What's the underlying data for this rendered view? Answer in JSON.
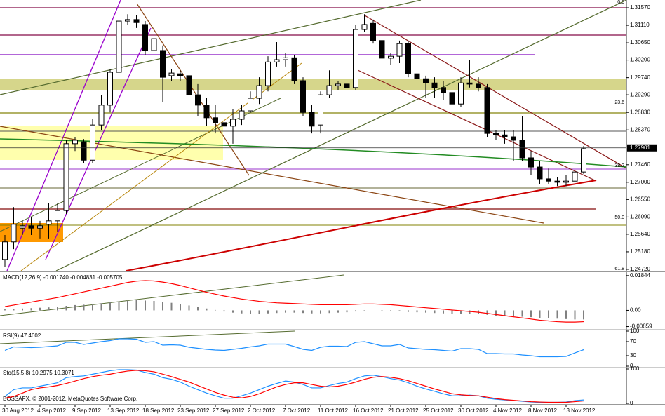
{
  "chart_data": [
    {
      "type": "candlestick",
      "categories": [
        "30 Aug 2012",
        null,
        null,
        null,
        "4 Sep 2012",
        null,
        null,
        null,
        "9 Sep 2012",
        null,
        null,
        null,
        "13 Sep 2012",
        null,
        null,
        null,
        "18 Sep 2012",
        null,
        null,
        null,
        "23 Sep 2012",
        null,
        null,
        null,
        "27 Sep 2012",
        null,
        null,
        null,
        "2 Oct 2012",
        null,
        null,
        null,
        "7 Oct 2012",
        null,
        null,
        null,
        "11 Oct 2012",
        null,
        null,
        null,
        "16 Oct 2012",
        null,
        null,
        null,
        "21 Oct 2012",
        null,
        null,
        null,
        "25 Oct 2012",
        null,
        null,
        null,
        "30 Oct 2012",
        null,
        null,
        null,
        "4 Nov 2012",
        null,
        null,
        null,
        "8 Nov 2012",
        null,
        null,
        null,
        "13 Nov 2012",
        null,
        null
      ],
      "open": [
        1.2498,
        1.2544,
        1.258,
        1.2586,
        1.258,
        1.259,
        1.2599,
        1.2626,
        1.2801,
        1.2806,
        1.2758,
        1.285,
        1.2902,
        1.2988,
        1.3122,
        1.3126,
        1.3113,
        1.3045,
        1.3045,
        1.2979,
        1.2984,
        1.2979,
        1.2929,
        1.2902,
        1.2869,
        1.2856,
        1.2847,
        1.2865,
        1.2887,
        1.292,
        1.2953,
        1.3015,
        1.3021,
        1.3026,
        1.2966,
        1.2883,
        1.285,
        1.2929,
        1.2953,
        1.2957,
        1.2948,
        1.31,
        1.3116,
        1.3071,
        1.3025,
        1.303,
        1.3063,
        1.2984,
        1.2971,
        1.296,
        1.2948,
        1.2935,
        1.2905,
        1.296,
        1.2957,
        1.2948,
        1.2828,
        1.2824,
        1.2819,
        1.281,
        1.2764,
        1.274,
        1.2709,
        1.2703,
        1.27,
        1.2703,
        1.2727
      ],
      "high": [
        1.2562,
        1.2635,
        1.2599,
        1.2608,
        1.2599,
        1.2645,
        1.2645,
        1.281,
        1.2819,
        1.2813,
        1.2865,
        1.2929,
        1.2997,
        1.3168,
        1.314,
        1.3137,
        1.3122,
        1.3104,
        1.3058,
        1.2997,
        1.2993,
        1.2984,
        1.2957,
        1.292,
        1.2902,
        1.2938,
        1.2892,
        1.2902,
        1.2938,
        1.2975,
        1.303,
        1.3067,
        1.3039,
        1.3034,
        1.2975,
        1.2902,
        1.2938,
        1.2993,
        1.2966,
        1.2984,
        1.3113,
        1.314,
        1.3126,
        1.3076,
        1.3039,
        1.3071,
        1.3071,
        1.2993,
        1.2979,
        1.2975,
        1.2966,
        1.2948,
        1.2975,
        1.3021,
        1.2975,
        1.2957,
        1.2837,
        1.2837,
        1.2837,
        1.2874,
        1.2782,
        1.2755,
        1.2736,
        1.2714,
        1.2718,
        1.2746,
        1.2795
      ],
      "low": [
        1.2479,
        1.2525,
        1.2562,
        1.2562,
        1.2553,
        1.2553,
        1.2571,
        1.2617,
        1.2782,
        1.2751,
        1.2751,
        1.2837,
        1.2883,
        1.2979,
        1.3113,
        1.3104,
        1.3034,
        1.303,
        1.2911,
        1.2966,
        1.2966,
        1.2902,
        1.2874,
        1.2847,
        1.2828,
        1.2801,
        1.2801,
        1.285,
        1.2883,
        1.2905,
        1.2938,
        1.3003,
        1.3003,
        1.2957,
        1.2874,
        1.2828,
        1.2828,
        1.292,
        1.2942,
        1.2892,
        1.2942,
        1.3094,
        1.3063,
        1.3015,
        1.3008,
        1.3012,
        1.2975,
        1.2929,
        1.292,
        1.292,
        1.2916,
        1.2887,
        1.2898,
        1.2948,
        1.2938,
        1.2819,
        1.281,
        1.2801,
        1.2755,
        1.2755,
        1.2718,
        1.2696,
        1.2696,
        1.269,
        1.269,
        1.2681,
        1.2722
      ],
      "close": [
        1.2544,
        1.259,
        1.2586,
        1.258,
        1.2586,
        1.2599,
        1.2626,
        1.2801,
        1.281,
        1.2758,
        1.285,
        1.2902,
        1.2988,
        1.3122,
        1.3126,
        1.3118,
        1.3045,
        1.3076,
        1.2975,
        1.2986,
        1.2979,
        1.2929,
        1.2902,
        1.2869,
        1.2856,
        1.2847,
        1.2865,
        1.2887,
        1.292,
        1.2953,
        1.3015,
        1.3021,
        1.3026,
        1.2966,
        1.2883,
        1.2847,
        1.2929,
        1.2953,
        1.2957,
        1.2948,
        1.31,
        1.3113,
        1.3071,
        1.3025,
        1.303,
        1.3063,
        1.2984,
        1.2971,
        1.296,
        1.2948,
        1.2935,
        1.2905,
        1.296,
        1.2957,
        1.2948,
        1.2828,
        1.2824,
        1.2819,
        1.281,
        1.2764,
        1.274,
        1.2709,
        1.2703,
        1.27,
        1.2703,
        1.2727,
        1.2788
      ],
      "up_color": "#ffffff",
      "down_color": "#000000",
      "ylim": [
        1.24683,
        1.31772
      ],
      "yticks": [
        {
          "value": 1.3157,
          "label": "1.31570"
        },
        {
          "value": 1.3111,
          "label": "1.31110"
        },
        {
          "value": 1.3065,
          "label": "1.30650"
        },
        {
          "value": 1.302,
          "label": "1.30200"
        },
        {
          "value": 1.2974,
          "label": "1.29740"
        },
        {
          "value": 1.2929,
          "label": "1.29290"
        },
        {
          "value": 1.2883,
          "label": "1.28830"
        },
        {
          "value": 1.2837,
          "label": "1.28370"
        },
        {
          "value": 1.2746,
          "label": "1.27460"
        },
        {
          "value": 1.27,
          "label": "1.27000"
        },
        {
          "value": 1.2655,
          "label": "1.26550"
        },
        {
          "value": 1.2609,
          "label": "1.26090"
        },
        {
          "value": 1.2564,
          "label": "1.25640"
        },
        {
          "value": 1.2518,
          "label": "1.25180"
        },
        {
          "value": 1.2472,
          "label": "1.24720"
        }
      ],
      "last_price": 1.27901,
      "annotations": [
        "0.0",
        "23.6",
        "38.2",
        "50.0",
        "61.8"
      ]
    },
    {
      "type": "macd",
      "title": "MACD(12,26,9) -0.001740 -0.004831 -0.005705",
      "series": [
        {
          "color": "#808080",
          "style": "bar",
          "values": [
            0.0005,
            0.0008,
            0.001,
            0.0012,
            0.0014,
            0.0016,
            0.0018,
            0.0024,
            0.0028,
            0.003,
            0.0034,
            0.0038,
            0.0042,
            0.0048,
            0.0052,
            0.0054,
            0.0052,
            0.005,
            0.0044,
            0.004,
            0.0034,
            0.0026,
            0.0018,
            0.001,
            0.0002,
            -0.0006,
            -0.0012,
            -0.0016,
            -0.0018,
            -0.0018,
            -0.0016,
            -0.0014,
            -0.0012,
            -0.0012,
            -0.0014,
            -0.0016,
            -0.0016,
            -0.0014,
            -0.0012,
            -0.001,
            -0.0006,
            -0.0002,
            0,
            -0.0002,
            -0.0004,
            -0.0004,
            -0.0008,
            -0.001,
            -0.0012,
            -0.0014,
            -0.0016,
            -0.0018,
            -0.0018,
            -0.0018,
            -0.002,
            -0.0024,
            -0.0028,
            -0.003,
            -0.0032,
            -0.0034,
            -0.0036,
            -0.004,
            -0.0042,
            -0.0044,
            -0.0046,
            -0.0048,
            -0.0048
          ]
        },
        {
          "color": "#ff0000",
          "style": "line",
          "values": [
            0.002,
            0.0028,
            0.0036,
            0.0044,
            0.0052,
            0.006,
            0.0068,
            0.0078,
            0.0088,
            0.0098,
            0.0108,
            0.0118,
            0.0128,
            0.0138,
            0.0148,
            0.0155,
            0.0158,
            0.0156,
            0.015,
            0.0142,
            0.0132,
            0.012,
            0.0108,
            0.0096,
            0.0086,
            0.0076,
            0.0068,
            0.006,
            0.0054,
            0.0048,
            0.0044,
            0.004,
            0.0038,
            0.0036,
            0.0034,
            0.0032,
            0.003,
            0.003,
            0.003,
            0.003,
            0.0032,
            0.0034,
            0.0034,
            0.0032,
            0.003,
            0.0026,
            0.0022,
            0.0018,
            0.0014,
            0.001,
            0.0006,
            0.0002,
            -0.0002,
            -0.0006,
            -0.001,
            -0.0016,
            -0.0022,
            -0.0028,
            -0.0034,
            -0.004,
            -0.0046,
            -0.0052,
            -0.0056,
            -0.006,
            -0.0062,
            -0.0062,
            -0.006
          ]
        }
      ],
      "ylim": [
        -0.0095,
        0.0195
      ],
      "yticks": [
        0.01844,
        {
          "value": 0,
          "label": "0.00"
        },
        -0.00859
      ]
    },
    {
      "type": "line",
      "title": "RSI(9) 47.4602",
      "series": [
        {
          "color": "#1e90ff",
          "values": [
            45,
            55,
            54,
            53,
            54,
            56,
            58,
            68,
            68,
            62,
            66,
            70,
            73,
            78,
            78,
            77,
            68,
            70,
            60,
            61,
            60,
            54,
            51,
            48,
            46,
            45,
            48,
            51,
            55,
            58,
            63,
            63,
            63,
            56,
            48,
            45,
            54,
            57,
            57,
            56,
            68,
            70,
            64,
            58,
            58,
            62,
            52,
            50,
            48,
            47,
            45,
            43,
            50,
            50,
            48,
            36,
            36,
            35,
            35,
            32,
            30,
            27,
            27,
            27,
            28,
            38,
            47
          ]
        }
      ],
      "ylim": [
        0,
        100
      ],
      "yticks": [
        0,
        30,
        70,
        100
      ]
    },
    {
      "type": "line",
      "title": "Sto(15,5,8) 10.2975 10.3071",
      "watermark": "BOSSAFX, © 2001-2012, MetaQuotes Software Corp.",
      "series": [
        {
          "color": "#1e90ff",
          "values": [
            20,
            40,
            45,
            45,
            50,
            55,
            60,
            75,
            78,
            80,
            85,
            90,
            95,
            98,
            98,
            97,
            90,
            85,
            75,
            70,
            62,
            50,
            40,
            30,
            22,
            15,
            15,
            22,
            30,
            40,
            50,
            58,
            65,
            62,
            55,
            45,
            45,
            52,
            58,
            62,
            72,
            80,
            82,
            78,
            72,
            68,
            60,
            50,
            42,
            35,
            28,
            22,
            22,
            24,
            22,
            15,
            12,
            10,
            8,
            6,
            4,
            3,
            3,
            3,
            4,
            8,
            10
          ]
        },
        {
          "color": "#ff0000",
          "values": [
            15,
            20,
            30,
            40,
            45,
            48,
            52,
            58,
            65,
            72,
            78,
            82,
            85,
            90,
            94,
            96,
            95,
            92,
            85,
            78,
            70,
            62,
            52,
            42,
            32,
            24,
            18,
            16,
            20,
            28,
            38,
            48,
            55,
            60,
            60,
            55,
            50,
            48,
            50,
            55,
            62,
            70,
            76,
            78,
            76,
            72,
            66,
            58,
            50,
            42,
            35,
            28,
            25,
            23,
            22,
            18,
            14,
            11,
            9,
            7,
            5,
            4,
            3,
            3,
            3,
            5,
            7
          ]
        }
      ],
      "ylim": [
        0,
        100
      ],
      "yticks": [
        0,
        100
      ]
    }
  ]
}
